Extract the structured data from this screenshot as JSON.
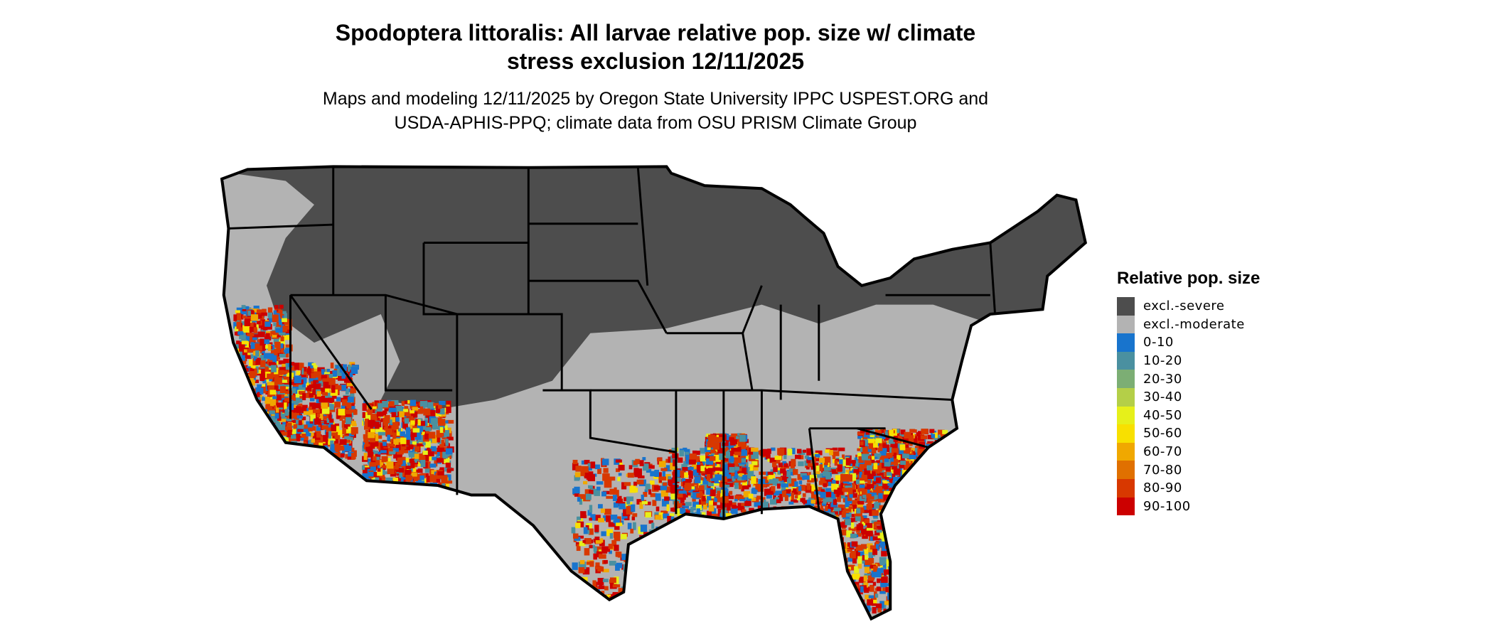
{
  "title_line1": "Spodoptera littoralis: All larvae relative pop. size w/ climate",
  "title_line2": "stress exclusion 12/11/2025",
  "subtitle_line1": "Maps and modeling 12/11/2025 by Oregon State University IPPC USPEST.ORG and",
  "subtitle_line2": "USDA-APHIS-PPQ; climate data from OSU PRISM Climate Group",
  "legend": {
    "title": "Relative pop. size",
    "items": [
      {
        "label": "excl.-severe",
        "color": "#4d4d4d"
      },
      {
        "label": "excl.-moderate",
        "color": "#b3b3b3"
      },
      {
        "label": "0-10",
        "color": "#1874cd"
      },
      {
        "label": "10-20",
        "color": "#4a90a0"
      },
      {
        "label": "20-30",
        "color": "#7cae74"
      },
      {
        "label": "30-40",
        "color": "#b4cf48"
      },
      {
        "label": "40-50",
        "color": "#e6f01a"
      },
      {
        "label": "50-60",
        "color": "#f8e000"
      },
      {
        "label": "60-70",
        "color": "#f0a800"
      },
      {
        "label": "70-80",
        "color": "#e07000"
      },
      {
        "label": "80-90",
        "color": "#d83800"
      },
      {
        "label": "90-100",
        "color": "#cc0000"
      }
    ]
  }
}
